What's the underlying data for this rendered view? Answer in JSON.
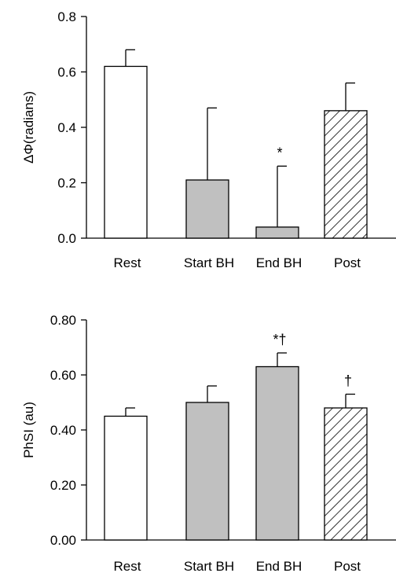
{
  "chart_data": [
    {
      "type": "bar",
      "ylabel": "ΔΦ(radians)",
      "categories": [
        "Rest",
        "Start BH",
        "End BH",
        "Post"
      ],
      "values": [
        0.62,
        0.21,
        0.04,
        0.46
      ],
      "errors": [
        0.06,
        0.26,
        0.22,
        0.1
      ],
      "fills": [
        "#ffffff",
        "#c0c0c0",
        "#c0c0c0",
        "hatch"
      ],
      "annotations": [
        "",
        "",
        "*",
        ""
      ],
      "ylim": [
        0,
        0.8
      ],
      "yticks": [
        0.0,
        0.2,
        0.4,
        0.6,
        0.8
      ],
      "ytick_labels": [
        "0.0",
        "0.2",
        "0.4",
        "0.6",
        "0.8"
      ]
    },
    {
      "type": "bar",
      "ylabel": "PhSI (au)",
      "categories": [
        "Rest",
        "Start BH",
        "End BH",
        "Post"
      ],
      "values": [
        0.45,
        0.5,
        0.63,
        0.48
      ],
      "errors": [
        0.03,
        0.06,
        0.05,
        0.05
      ],
      "fills": [
        "#ffffff",
        "#c0c0c0",
        "#c0c0c0",
        "hatch"
      ],
      "annotations": [
        "",
        "",
        "*†",
        "†"
      ],
      "ylim": [
        0,
        0.8
      ],
      "yticks": [
        0.0,
        0.2,
        0.4,
        0.6,
        0.8
      ],
      "ytick_labels": [
        "0.00",
        "0.20",
        "0.40",
        "0.60",
        "0.80"
      ]
    }
  ]
}
